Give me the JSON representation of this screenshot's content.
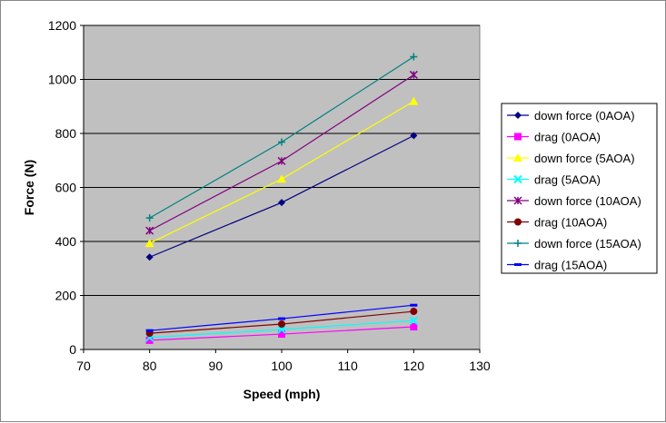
{
  "chart_data": {
    "type": "line",
    "title": "",
    "xlabel": "Speed (mph)",
    "ylabel": "Force (N)",
    "xlim": [
      70,
      130
    ],
    "ylim": [
      0,
      1200
    ],
    "xticks": [
      70,
      80,
      90,
      100,
      110,
      120,
      130
    ],
    "yticks": [
      0,
      200,
      400,
      600,
      800,
      1000,
      1200
    ],
    "grid": "horizontal major",
    "plot_background": "#C0C0C0",
    "legend_position": "right",
    "x": [
      80,
      100,
      120
    ],
    "series": [
      {
        "name": "down force (0AOA)",
        "values": [
          342,
          544,
          792
        ],
        "color": "#000080",
        "marker": "diamond"
      },
      {
        "name": "drag (0AOA)",
        "values": [
          34,
          57,
          84
        ],
        "color": "#FF00FF",
        "marker": "square"
      },
      {
        "name": "down force (5AOA)",
        "values": [
          393,
          631,
          919
        ],
        "color": "#FFFF00",
        "marker": "triangle"
      },
      {
        "name": "drag (5AOA)",
        "values": [
          44,
          74,
          107
        ],
        "color": "#00FFFF",
        "marker": "x"
      },
      {
        "name": "down force (10AOA)",
        "values": [
          440,
          698,
          1017
        ],
        "color": "#800080",
        "marker": "star"
      },
      {
        "name": "drag (10AOA)",
        "values": [
          60,
          94,
          141
        ],
        "color": "#800000",
        "marker": "circle"
      },
      {
        "name": "down force (15AOA)",
        "values": [
          487,
          768,
          1084
        ],
        "color": "#008080",
        "marker": "plus"
      },
      {
        "name": "drag (15AOA)",
        "values": [
          70,
          114,
          164
        ],
        "color": "#0000FF",
        "marker": "dash"
      }
    ]
  }
}
